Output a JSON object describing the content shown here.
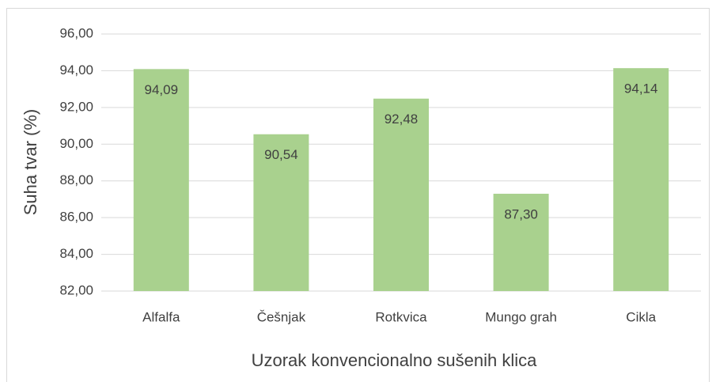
{
  "chart_data": {
    "type": "bar",
    "x_label": "Uzorak konvencionalno sušenih klica",
    "y_label": "Suha tvar (%)",
    "categories": [
      "Alfalfa",
      "Češnjak",
      "Rotkvica",
      "Mungo grah",
      "Cikla"
    ],
    "values": [
      94.09,
      90.54,
      92.48,
      87.3,
      94.14
    ],
    "value_labels": [
      "94,09",
      "90,54",
      "92,48",
      "87,30",
      "94,14"
    ],
    "color": "#a9d18e",
    "ylim": [
      82,
      96
    ],
    "yticks": [
      {
        "value": 82,
        "label": "82,00"
      },
      {
        "value": 84,
        "label": "84,00"
      },
      {
        "value": 86,
        "label": "86,00"
      },
      {
        "value": 88,
        "label": "88,00"
      },
      {
        "value": 90,
        "label": "90,00"
      },
      {
        "value": 92,
        "label": "92,00"
      },
      {
        "value": 94,
        "label": "94,00"
      },
      {
        "value": 96,
        "label": "96,00"
      }
    ],
    "grid": true
  }
}
